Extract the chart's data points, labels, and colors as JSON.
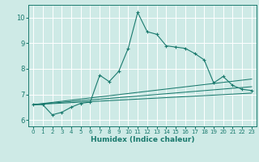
{
  "xlabel": "Humidex (Indice chaleur)",
  "background_color": "#ceeae6",
  "grid_color": "#ffffff",
  "line_color": "#1a7a6e",
  "xlim": [
    -0.5,
    23.5
  ],
  "ylim": [
    5.75,
    10.5
  ],
  "xticks": [
    0,
    1,
    2,
    3,
    4,
    5,
    6,
    7,
    8,
    9,
    10,
    11,
    12,
    13,
    14,
    15,
    16,
    17,
    18,
    19,
    20,
    21,
    22,
    23
  ],
  "yticks": [
    6,
    7,
    8,
    9,
    10
  ],
  "series": {
    "main": {
      "x": [
        0,
        1,
        2,
        3,
        4,
        5,
        6,
        7,
        8,
        9,
        10,
        11,
        12,
        13,
        14,
        15,
        16,
        17,
        18,
        19,
        20,
        21,
        22,
        23
      ],
      "y": [
        6.6,
        6.6,
        6.2,
        6.3,
        6.5,
        6.65,
        6.7,
        7.75,
        7.5,
        7.9,
        8.8,
        10.2,
        9.45,
        9.35,
        8.9,
        8.85,
        8.8,
        8.6,
        8.35,
        7.45,
        7.7,
        7.35,
        7.2,
        7.15
      ]
    },
    "smooth1": {
      "x": [
        0,
        23
      ],
      "y": [
        6.6,
        7.6
      ]
    },
    "smooth2": {
      "x": [
        0,
        23
      ],
      "y": [
        6.6,
        7.3
      ]
    },
    "smooth3": {
      "x": [
        0,
        23
      ],
      "y": [
        6.6,
        7.05
      ]
    }
  }
}
